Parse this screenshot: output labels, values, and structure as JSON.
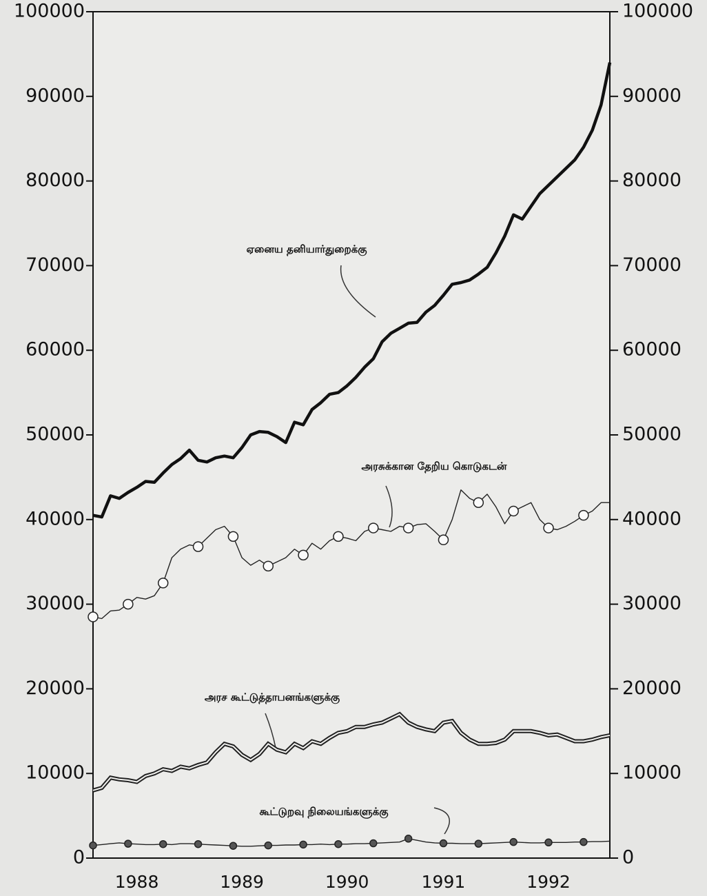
{
  "chart_data": {
    "type": "line",
    "categories": [
      null,
      null,
      null,
      null,
      null,
      "1988",
      null,
      null,
      null,
      null,
      null,
      null,
      null,
      null,
      null,
      null,
      null,
      "1989",
      null,
      null,
      null,
      null,
      null,
      null,
      null,
      null,
      null,
      null,
      null,
      "1990",
      null,
      null,
      null,
      null,
      null,
      null,
      null,
      null,
      null,
      null,
      "1991",
      null,
      null,
      null,
      null,
      null,
      null,
      null,
      null,
      null,
      null,
      null,
      "1992",
      null,
      null,
      null,
      null,
      null,
      null,
      null
    ],
    "series": [
      {
        "name": "ஏனைய தனியார்துறைக்கு",
        "color": "#111111",
        "values": [
          40500,
          40300,
          42800,
          42500,
          43200,
          43800,
          44500,
          44400,
          45500,
          46500,
          47200,
          48200,
          47000,
          46800,
          47300,
          47500,
          47300,
          48500,
          50000,
          50400,
          50300,
          49800,
          49100,
          51500,
          51200,
          53000,
          53800,
          54800,
          55000,
          55800,
          56800,
          58000,
          59000,
          61000,
          62000,
          62600,
          63200,
          63300,
          64500,
          65300,
          66500,
          67800,
          68000,
          68300,
          69000,
          69800,
          71500,
          73500,
          76000,
          75500,
          77000,
          78500,
          79500,
          80500,
          81500,
          82500,
          84000,
          86000,
          89000,
          94000
        ]
      },
      {
        "name": "அரசுக்கான தேறிய கொடுகடன்",
        "color": "#222222",
        "marker": "circle",
        "values": [
          28500,
          28300,
          29200,
          29300,
          30000,
          30800,
          30600,
          31000,
          32500,
          35500,
          36500,
          37000,
          36800,
          37800,
          38800,
          39200,
          38000,
          35500,
          34600,
          35200,
          34500,
          35000,
          35500,
          36500,
          35800,
          37200,
          36500,
          37500,
          38000,
          37800,
          37500,
          38600,
          39000,
          38800,
          38600,
          39200,
          39000,
          39400,
          39500,
          38600,
          37600,
          40000,
          43500,
          42500,
          42000,
          43000,
          41500,
          39500,
          41000,
          41500,
          42000,
          40000,
          39000,
          38800,
          39200,
          39800,
          40500,
          41000,
          42000,
          42000
        ]
      },
      {
        "name": "அரச கூட்டுத்தாபனங்களுக்கு",
        "color": "#222222",
        "values": [
          8000,
          8300,
          9500,
          9300,
          9200,
          9000,
          9700,
          10000,
          10500,
          10300,
          10800,
          10600,
          11000,
          11300,
          12500,
          13500,
          13200,
          12200,
          11600,
          12300,
          13500,
          12800,
          12500,
          13500,
          13000,
          13800,
          13500,
          14200,
          14800,
          15000,
          15500,
          15500,
          15800,
          16000,
          16500,
          17000,
          16000,
          15500,
          15200,
          15000,
          16000,
          16200,
          14800,
          14000,
          13500,
          13500,
          13600,
          14000,
          15000,
          15000,
          15000,
          14800,
          14500,
          14600,
          14200,
          13800,
          13800,
          14000,
          14300,
          14500
        ]
      },
      {
        "name": "கூட்டுறவு நிலையங்களுக்கு",
        "color": "#222222",
        "marker": "circle",
        "values": [
          1500,
          1600,
          1700,
          1800,
          1700,
          1650,
          1600,
          1600,
          1650,
          1600,
          1700,
          1700,
          1650,
          1600,
          1550,
          1500,
          1450,
          1400,
          1400,
          1450,
          1500,
          1500,
          1550,
          1550,
          1600,
          1600,
          1650,
          1600,
          1650,
          1650,
          1700,
          1700,
          1750,
          1800,
          1850,
          1900,
          2300,
          2100,
          1900,
          1800,
          1750,
          1750,
          1700,
          1700,
          1700,
          1750,
          1800,
          1850,
          1900,
          1850,
          1800,
          1800,
          1850,
          1850,
          1850,
          1900,
          1900,
          1950,
          1950,
          2000
        ]
      }
    ],
    "ylim": [
      0,
      100000
    ],
    "yticks": [
      0,
      10000,
      20000,
      30000,
      40000,
      50000,
      60000,
      70000,
      80000,
      90000,
      100000
    ],
    "y2lim": [
      0,
      100000
    ],
    "y2ticks": [
      0,
      10000,
      20000,
      30000,
      40000,
      50000,
      60000,
      70000,
      80000,
      90000,
      100000
    ],
    "grid": false
  }
}
